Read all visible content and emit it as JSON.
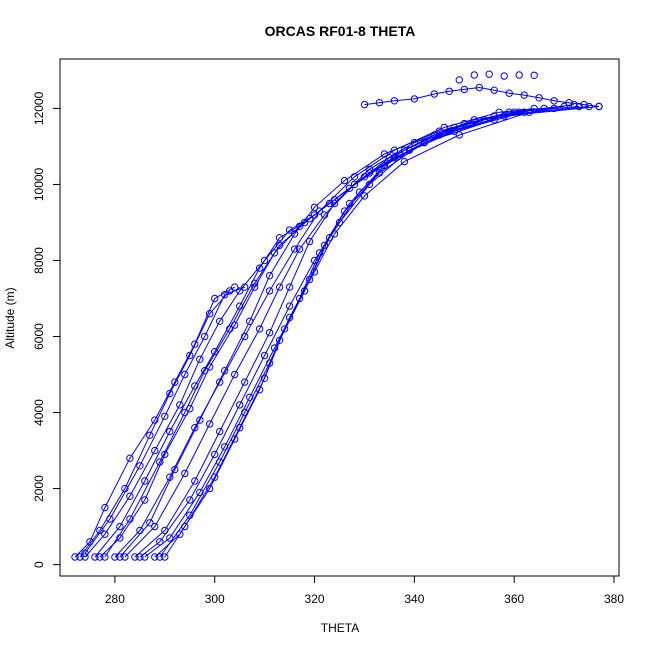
{
  "chart_data": {
    "type": "scatter",
    "title": "ORCAS RF01-8 THETA",
    "xlabel": "THETA",
    "ylabel": "Altitude (m)",
    "xlim": [
      269,
      381
    ],
    "ylim": [
      -300,
      13300
    ],
    "xticks": [
      "280",
      "300",
      "320",
      "340",
      "360",
      "380"
    ],
    "yticks": [
      "0",
      "2000",
      "4000",
      "6000",
      "8000",
      "10000",
      "12000"
    ],
    "grid": false,
    "legend": "none",
    "style": "points connected by lines (open circles)",
    "color": "#0000ff",
    "profiles": [
      [
        [
          272,
          200
        ],
        [
          275,
          600
        ],
        [
          278,
          1500
        ],
        [
          283,
          2800
        ],
        [
          288,
          3800
        ],
        [
          292,
          4800
        ],
        [
          296,
          5800
        ],
        [
          300,
          7000
        ],
        [
          304,
          7300
        ]
      ],
      [
        [
          273,
          200
        ],
        [
          277,
          900
        ],
        [
          282,
          2000
        ],
        [
          287,
          3400
        ],
        [
          291,
          4500
        ],
        [
          295,
          5500
        ],
        [
          299,
          6600
        ],
        [
          303,
          7200
        ]
      ],
      [
        [
          274,
          300
        ],
        [
          279,
          1200
        ],
        [
          285,
          2600
        ],
        [
          290,
          3900
        ],
        [
          294,
          5000
        ],
        [
          298,
          6000
        ],
        [
          302,
          7100
        ],
        [
          306,
          7300
        ]
      ],
      [
        [
          276,
          200
        ],
        [
          281,
          1000
        ],
        [
          286,
          2200
        ],
        [
          291,
          3500
        ],
        [
          296,
          4700
        ],
        [
          300,
          5600
        ],
        [
          305,
          6800
        ],
        [
          309,
          7800
        ],
        [
          313,
          8600
        ],
        [
          318,
          9000
        ]
      ],
      [
        [
          278,
          200
        ],
        [
          283,
          1200
        ],
        [
          289,
          2700
        ],
        [
          294,
          4000
        ],
        [
          298,
          5100
        ],
        [
          303,
          6200
        ],
        [
          308,
          7400
        ],
        [
          313,
          8400
        ],
        [
          319,
          9100
        ],
        [
          324,
          9600
        ],
        [
          330,
          10200
        ],
        [
          338,
          10900
        ],
        [
          348,
          11500
        ],
        [
          360,
          11900
        ],
        [
          372,
          12100
        ]
      ],
      [
        [
          280,
          200
        ],
        [
          285,
          900
        ],
        [
          291,
          2300
        ],
        [
          296,
          3600
        ],
        [
          301,
          4800
        ],
        [
          306,
          6000
        ],
        [
          311,
          7200
        ],
        [
          316,
          8300
        ],
        [
          321,
          9300
        ],
        [
          328,
          10200
        ],
        [
          336,
          10900
        ],
        [
          346,
          11500
        ],
        [
          357,
          11900
        ],
        [
          370,
          12050
        ]
      ],
      [
        [
          282,
          200
        ],
        [
          288,
          1000
        ],
        [
          294,
          2400
        ],
        [
          299,
          3700
        ],
        [
          304,
          5000
        ],
        [
          309,
          6200
        ],
        [
          313,
          7300
        ],
        [
          317,
          8300
        ],
        [
          322,
          9200
        ],
        [
          328,
          10000
        ],
        [
          335,
          10700
        ],
        [
          344,
          11300
        ],
        [
          356,
          11800
        ],
        [
          375,
          12050
        ]
      ],
      [
        [
          284,
          200
        ],
        [
          290,
          900
        ],
        [
          296,
          2200
        ],
        [
          301,
          3500
        ],
        [
          306,
          4800
        ],
        [
          311,
          6100
        ],
        [
          315,
          7300
        ],
        [
          319,
          8500
        ],
        [
          324,
          9500
        ],
        [
          331,
          10400
        ],
        [
          340,
          11100
        ],
        [
          352,
          11700
        ],
        [
          366,
          12000
        ]
      ],
      [
        [
          286,
          200
        ],
        [
          291,
          700
        ],
        [
          297,
          1900
        ],
        [
          302,
          3100
        ],
        [
          307,
          4400
        ],
        [
          312,
          5700
        ],
        [
          317,
          7000
        ],
        [
          321,
          8200
        ],
        [
          326,
          9300
        ],
        [
          333,
          10300
        ],
        [
          342,
          11100
        ],
        [
          354,
          11700
        ],
        [
          368,
          12000
        ]
      ],
      [
        [
          288,
          200
        ],
        [
          293,
          800
        ],
        [
          299,
          2000
        ],
        [
          304,
          3300
        ],
        [
          309,
          4600
        ],
        [
          313,
          5900
        ],
        [
          318,
          7200
        ],
        [
          322,
          8400
        ],
        [
          327,
          9500
        ],
        [
          334,
          10500
        ],
        [
          345,
          11300
        ],
        [
          358,
          11800
        ],
        [
          377,
          12050
        ]
      ],
      [
        [
          290,
          200
        ],
        [
          294,
          1000
        ],
        [
          300,
          2300
        ],
        [
          305,
          3600
        ],
        [
          310,
          4900
        ],
        [
          314,
          6200
        ],
        [
          319,
          7500
        ],
        [
          323,
          8600
        ],
        [
          329,
          9800
        ],
        [
          336,
          10700
        ],
        [
          348,
          11400
        ],
        [
          362,
          11900
        ]
      ],
      [
        [
          285,
          200
        ],
        [
          289,
          600
        ],
        [
          295,
          1700
        ],
        [
          300,
          2900
        ],
        [
          305,
          4200
        ],
        [
          310,
          5500
        ],
        [
          315,
          6800
        ],
        [
          320,
          8000
        ],
        [
          325,
          9000
        ],
        [
          331,
          10000
        ],
        [
          339,
          10900
        ],
        [
          350,
          11600
        ],
        [
          364,
          12000
        ]
      ],
      [
        [
          274,
          200
        ],
        [
          278,
          800
        ],
        [
          283,
          1800
        ],
        [
          288,
          3000
        ],
        [
          293,
          4200
        ],
        [
          297,
          5400
        ],
        [
          301,
          6400
        ],
        [
          305,
          7200
        ],
        [
          310,
          8000
        ],
        [
          315,
          8800
        ],
        [
          320,
          9200
        ],
        [
          327,
          9900
        ],
        [
          336,
          10700
        ],
        [
          347,
          11400
        ],
        [
          361,
          11900
        ]
      ],
      [
        [
          277,
          200
        ],
        [
          281,
          700
        ],
        [
          286,
          1700
        ],
        [
          290,
          2900
        ],
        [
          295,
          4100
        ],
        [
          299,
          5200
        ],
        [
          304,
          6300
        ],
        [
          308,
          7300
        ],
        [
          312,
          8200
        ],
        [
          317,
          8900
        ],
        [
          323,
          9500
        ],
        [
          331,
          10300
        ],
        [
          342,
          11100
        ],
        [
          356,
          11700
        ]
      ],
      [
        [
          281,
          200
        ],
        [
          287,
          1100
        ],
        [
          292,
          2500
        ],
        [
          297,
          3800
        ],
        [
          302,
          5100
        ],
        [
          307,
          6400
        ],
        [
          311,
          7600
        ],
        [
          316,
          8700
        ],
        [
          320,
          9400
        ],
        [
          326,
          10100
        ],
        [
          334,
          10800
        ],
        [
          345,
          11400
        ],
        [
          359,
          11900
        ],
        [
          373,
          12050
        ]
      ],
      [
        [
          289,
          200
        ],
        [
          295,
          1300
        ],
        [
          301,
          2700
        ],
        [
          306,
          4000
        ],
        [
          311,
          5300
        ],
        [
          315,
          6500
        ],
        [
          320,
          7700
        ],
        [
          324,
          8700
        ],
        [
          330,
          9700
        ],
        [
          338,
          10600
        ],
        [
          349,
          11300
        ],
        [
          363,
          11900
        ]
      ]
    ],
    "top_cluster": [
      [
        330,
        12100
      ],
      [
        333,
        12150
      ],
      [
        336,
        12200
      ],
      [
        340,
        12250
      ],
      [
        344,
        12380
      ],
      [
        347,
        12450
      ],
      [
        350,
        12500
      ],
      [
        353,
        12550
      ],
      [
        356,
        12480
      ],
      [
        359,
        12400
      ],
      [
        362,
        12350
      ],
      [
        365,
        12280
      ],
      [
        368,
        12200
      ],
      [
        371,
        12150
      ],
      [
        374,
        12100
      ],
      [
        377,
        12050
      ]
    ],
    "top_peaks": [
      [
        349,
        12750
      ],
      [
        352,
        12880
      ],
      [
        355,
        12900
      ],
      [
        358,
        12850
      ],
      [
        361,
        12880
      ],
      [
        364,
        12870
      ]
    ]
  }
}
